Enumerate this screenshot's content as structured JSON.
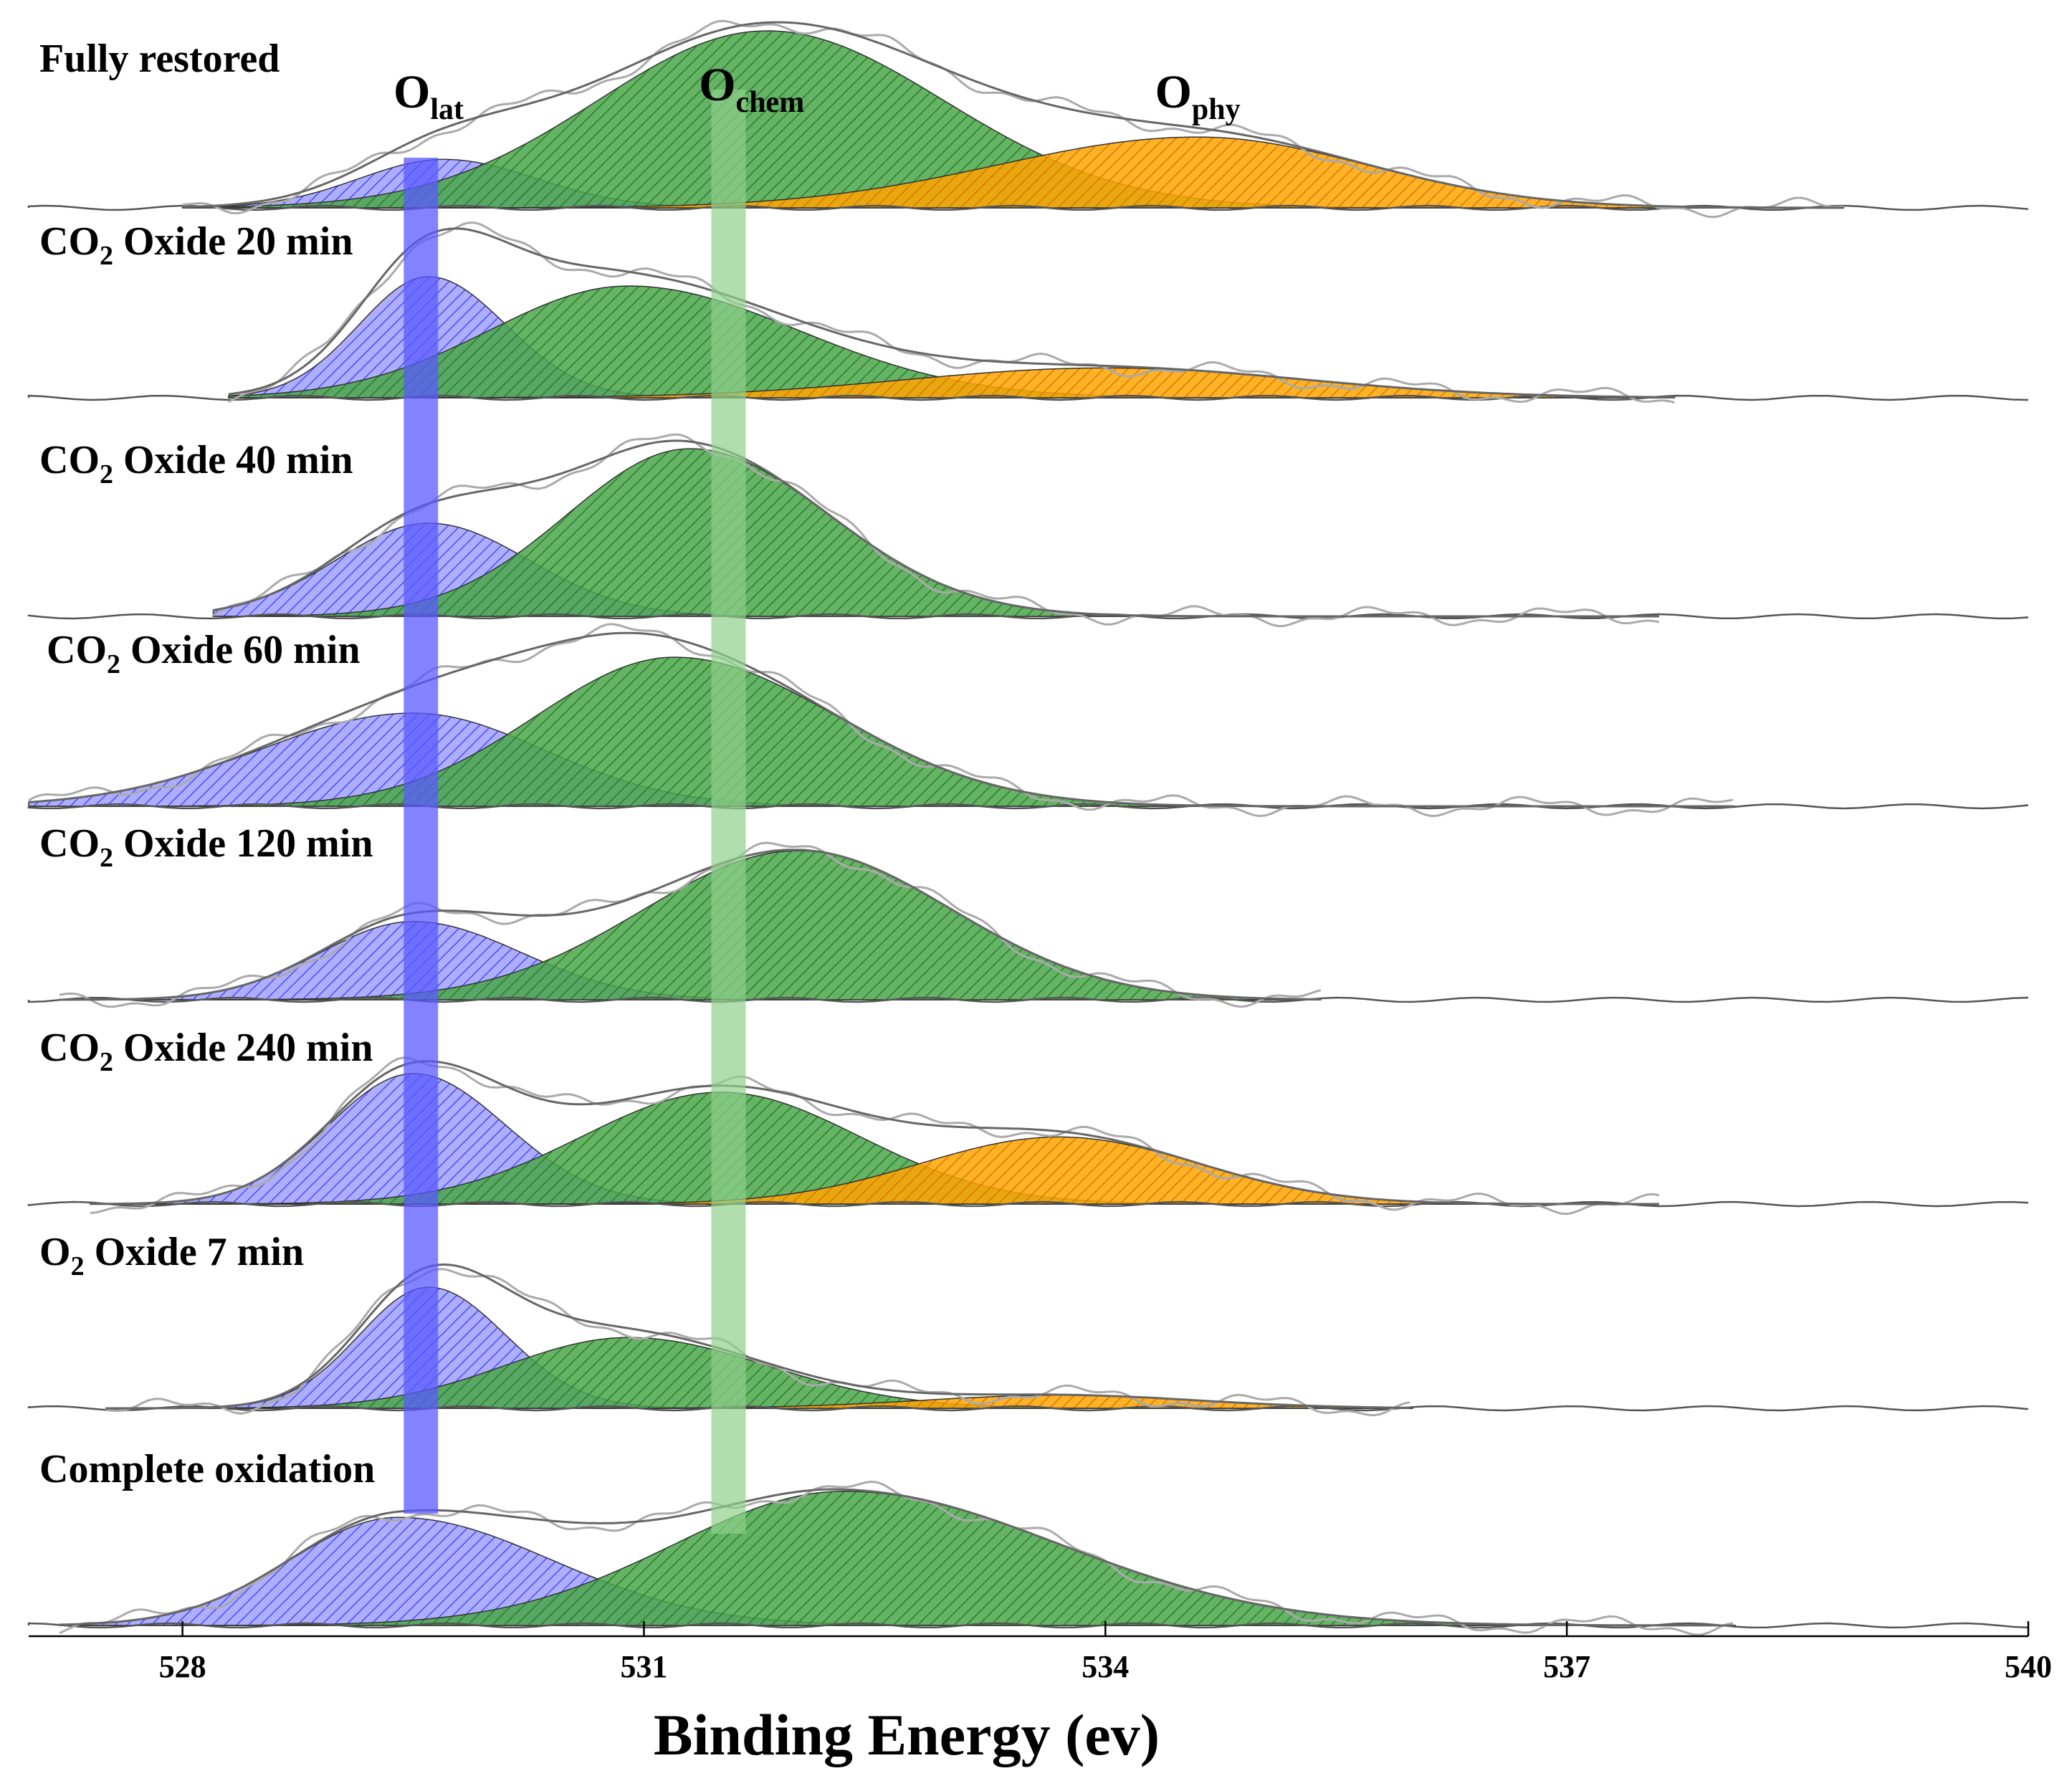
{
  "chart_data": {
    "type": "area",
    "title": "",
    "xlabel": "Binding Energy (ev)",
    "ylabel": "",
    "xlim": [
      527,
      540
    ],
    "xticks": [
      528,
      531,
      534,
      537,
      540
    ],
    "grid": false,
    "peak_labels": [
      {
        "id": "lat",
        "base": "O",
        "sub": "lat",
        "x": 529.6
      },
      {
        "id": "chem",
        "base": "O",
        "sub": "chem",
        "x": 531.7
      },
      {
        "id": "phy",
        "base": "O",
        "sub": "phy",
        "x": 534.6
      }
    ],
    "guide_lines": [
      {
        "name": "O_lat",
        "x": 529.55,
        "color": "#5959ff"
      },
      {
        "name": "O_chem",
        "x": 531.55,
        "color": "#8fd08a"
      }
    ],
    "colors": {
      "lat": "#6a6aff",
      "chem": "#3e9b3e",
      "phy": "#ff9a00",
      "envelope": "#666666",
      "raw": "#aaaaaa"
    },
    "series": [
      {
        "label_main": "Fully restored",
        "label_sub": "",
        "label_rest": "",
        "components": [
          {
            "type": "lat",
            "center": 529.7,
            "amplitude": 0.26,
            "sigma_left": 0.55,
            "sigma_right": 0.6
          },
          {
            "type": "chem",
            "center": 531.8,
            "amplitude": 0.95,
            "sigma_left": 1.1,
            "sigma_right": 1.15
          },
          {
            "type": "phy",
            "center": 534.6,
            "amplitude": 0.38,
            "sigma_left": 1.3,
            "sigma_right": 1.1
          }
        ]
      },
      {
        "label_main": "CO",
        "label_sub": "2",
        "label_rest": "  Oxide 20 min",
        "components": [
          {
            "type": "lat",
            "center": 529.6,
            "amplitude": 0.65,
            "sigma_left": 0.45,
            "sigma_right": 0.5
          },
          {
            "type": "chem",
            "center": 530.9,
            "amplitude": 0.6,
            "sigma_left": 0.9,
            "sigma_right": 1.1
          },
          {
            "type": "phy",
            "center": 534.0,
            "amplitude": 0.16,
            "sigma_left": 1.3,
            "sigma_right": 1.3
          }
        ]
      },
      {
        "label_main": "CO",
        "label_sub": "2",
        "label_rest": " Oxide 40 min",
        "components": [
          {
            "type": "lat",
            "center": 529.6,
            "amplitude": 0.5,
            "sigma_left": 0.6,
            "sigma_right": 0.65
          },
          {
            "type": "chem",
            "center": 531.3,
            "amplitude": 0.9,
            "sigma_left": 0.8,
            "sigma_right": 0.9
          }
        ]
      },
      {
        "label_main": "CO",
        "label_sub": "2",
        "label_rest": " Oxide 60 min",
        "components": [
          {
            "type": "lat",
            "center": 529.5,
            "amplitude": 0.5,
            "sigma_left": 1.0,
            "sigma_right": 0.85
          },
          {
            "type": "chem",
            "center": 531.2,
            "amplitude": 0.8,
            "sigma_left": 0.9,
            "sigma_right": 1.05
          }
        ]
      },
      {
        "label_main": "CO",
        "label_sub": "2",
        "label_rest": " Oxide 120 min",
        "components": [
          {
            "type": "lat",
            "center": 529.5,
            "amplitude": 0.42,
            "sigma_left": 0.6,
            "sigma_right": 0.7
          },
          {
            "type": "chem",
            "center": 532.0,
            "amplitude": 0.8,
            "sigma_left": 1.0,
            "sigma_right": 1.0
          }
        ]
      },
      {
        "label_main": "CO",
        "label_sub": "2",
        "label_rest": " Oxide 240 min",
        "components": [
          {
            "type": "lat",
            "center": 529.5,
            "amplitude": 0.7,
            "sigma_left": 0.55,
            "sigma_right": 0.6
          },
          {
            "type": "chem",
            "center": 531.5,
            "amplitude": 0.6,
            "sigma_left": 0.9,
            "sigma_right": 0.9
          },
          {
            "type": "phy",
            "center": 533.7,
            "amplitude": 0.36,
            "sigma_left": 0.9,
            "sigma_right": 0.9
          }
        ]
      },
      {
        "label_main": "O",
        "label_sub": "2",
        "label_rest": " Oxide 7 min",
        "components": [
          {
            "type": "lat",
            "center": 529.6,
            "amplitude": 0.65,
            "sigma_left": 0.45,
            "sigma_right": 0.5
          },
          {
            "type": "chem",
            "center": 530.9,
            "amplitude": 0.38,
            "sigma_left": 0.8,
            "sigma_right": 0.9
          },
          {
            "type": "phy",
            "center": 533.7,
            "amplitude": 0.07,
            "sigma_left": 0.9,
            "sigma_right": 0.9
          }
        ]
      },
      {
        "label_main": "Complete oxidation",
        "label_sub": "",
        "label_rest": "",
        "components": [
          {
            "type": "lat",
            "center": 529.4,
            "amplitude": 0.58,
            "sigma_left": 0.7,
            "sigma_right": 1.0
          },
          {
            "type": "chem",
            "center": 532.3,
            "amplitude": 0.72,
            "sigma_left": 1.1,
            "sigma_right": 1.4
          }
        ]
      }
    ]
  }
}
